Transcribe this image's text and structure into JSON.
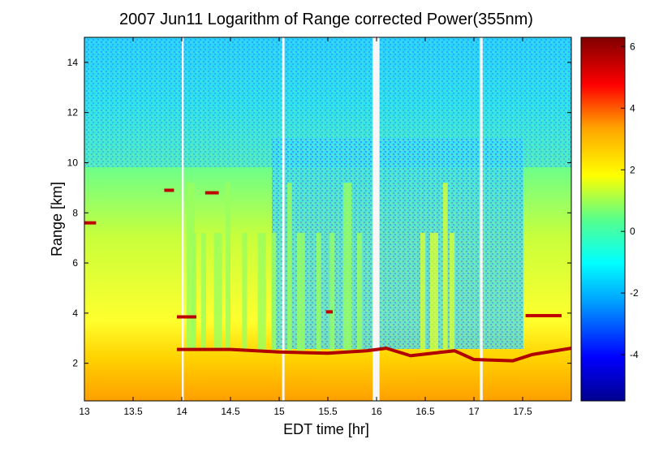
{
  "chart_data": {
    "type": "heatmap",
    "title": "2007 Jun11  Logarithm of Range corrected Power(355nm)",
    "xlabel": "EDT time [hr]",
    "ylabel": "Range [km]",
    "xlim": [
      13,
      18
    ],
    "ylim": [
      0.5,
      15
    ],
    "x_ticks": [
      13,
      13.5,
      14,
      14.5,
      15,
      15.5,
      16,
      16.5,
      17,
      17.5
    ],
    "y_ticks": [
      2,
      4,
      6,
      8,
      10,
      12,
      14
    ],
    "colorbar": {
      "range": [
        -5.5,
        6.3
      ],
      "ticks": [
        -4,
        -2,
        0,
        2,
        4,
        6
      ],
      "colormap": "jet"
    },
    "gaps": [
      {
        "x": 14.0,
        "width": 0.02
      },
      {
        "x": 15.03,
        "width": 0.025
      },
      {
        "x": 15.96,
        "width": 0.07
      },
      {
        "x": 17.06,
        "width": 0.03
      }
    ],
    "boundary_layer_height": [
      {
        "x": 13.95,
        "y": 2.55
      },
      {
        "x": 14.5,
        "y": 2.55
      },
      {
        "x": 15.0,
        "y": 2.45
      },
      {
        "x": 15.5,
        "y": 2.4
      },
      {
        "x": 15.9,
        "y": 2.5
      },
      {
        "x": 16.1,
        "y": 2.6
      },
      {
        "x": 16.35,
        "y": 2.3
      },
      {
        "x": 16.8,
        "y": 2.5
      },
      {
        "x": 17.0,
        "y": 2.15
      },
      {
        "x": 17.4,
        "y": 2.1
      },
      {
        "x": 17.6,
        "y": 2.35
      },
      {
        "x": 18.0,
        "y": 2.6
      }
    ],
    "cloud_layers": [
      {
        "x_start": 13.0,
        "x_end": 13.12,
        "y": 7.6
      },
      {
        "x_start": 13.82,
        "x_end": 13.92,
        "y": 8.9
      },
      {
        "x_start": 14.24,
        "x_end": 14.38,
        "y": 8.8
      },
      {
        "x_start": 13.95,
        "x_end": 14.15,
        "y": 3.85
      },
      {
        "x_start": 15.48,
        "x_end": 15.55,
        "y": 4.05
      },
      {
        "x_start": 17.53,
        "x_end": 17.9,
        "y": 3.9
      }
    ]
  }
}
